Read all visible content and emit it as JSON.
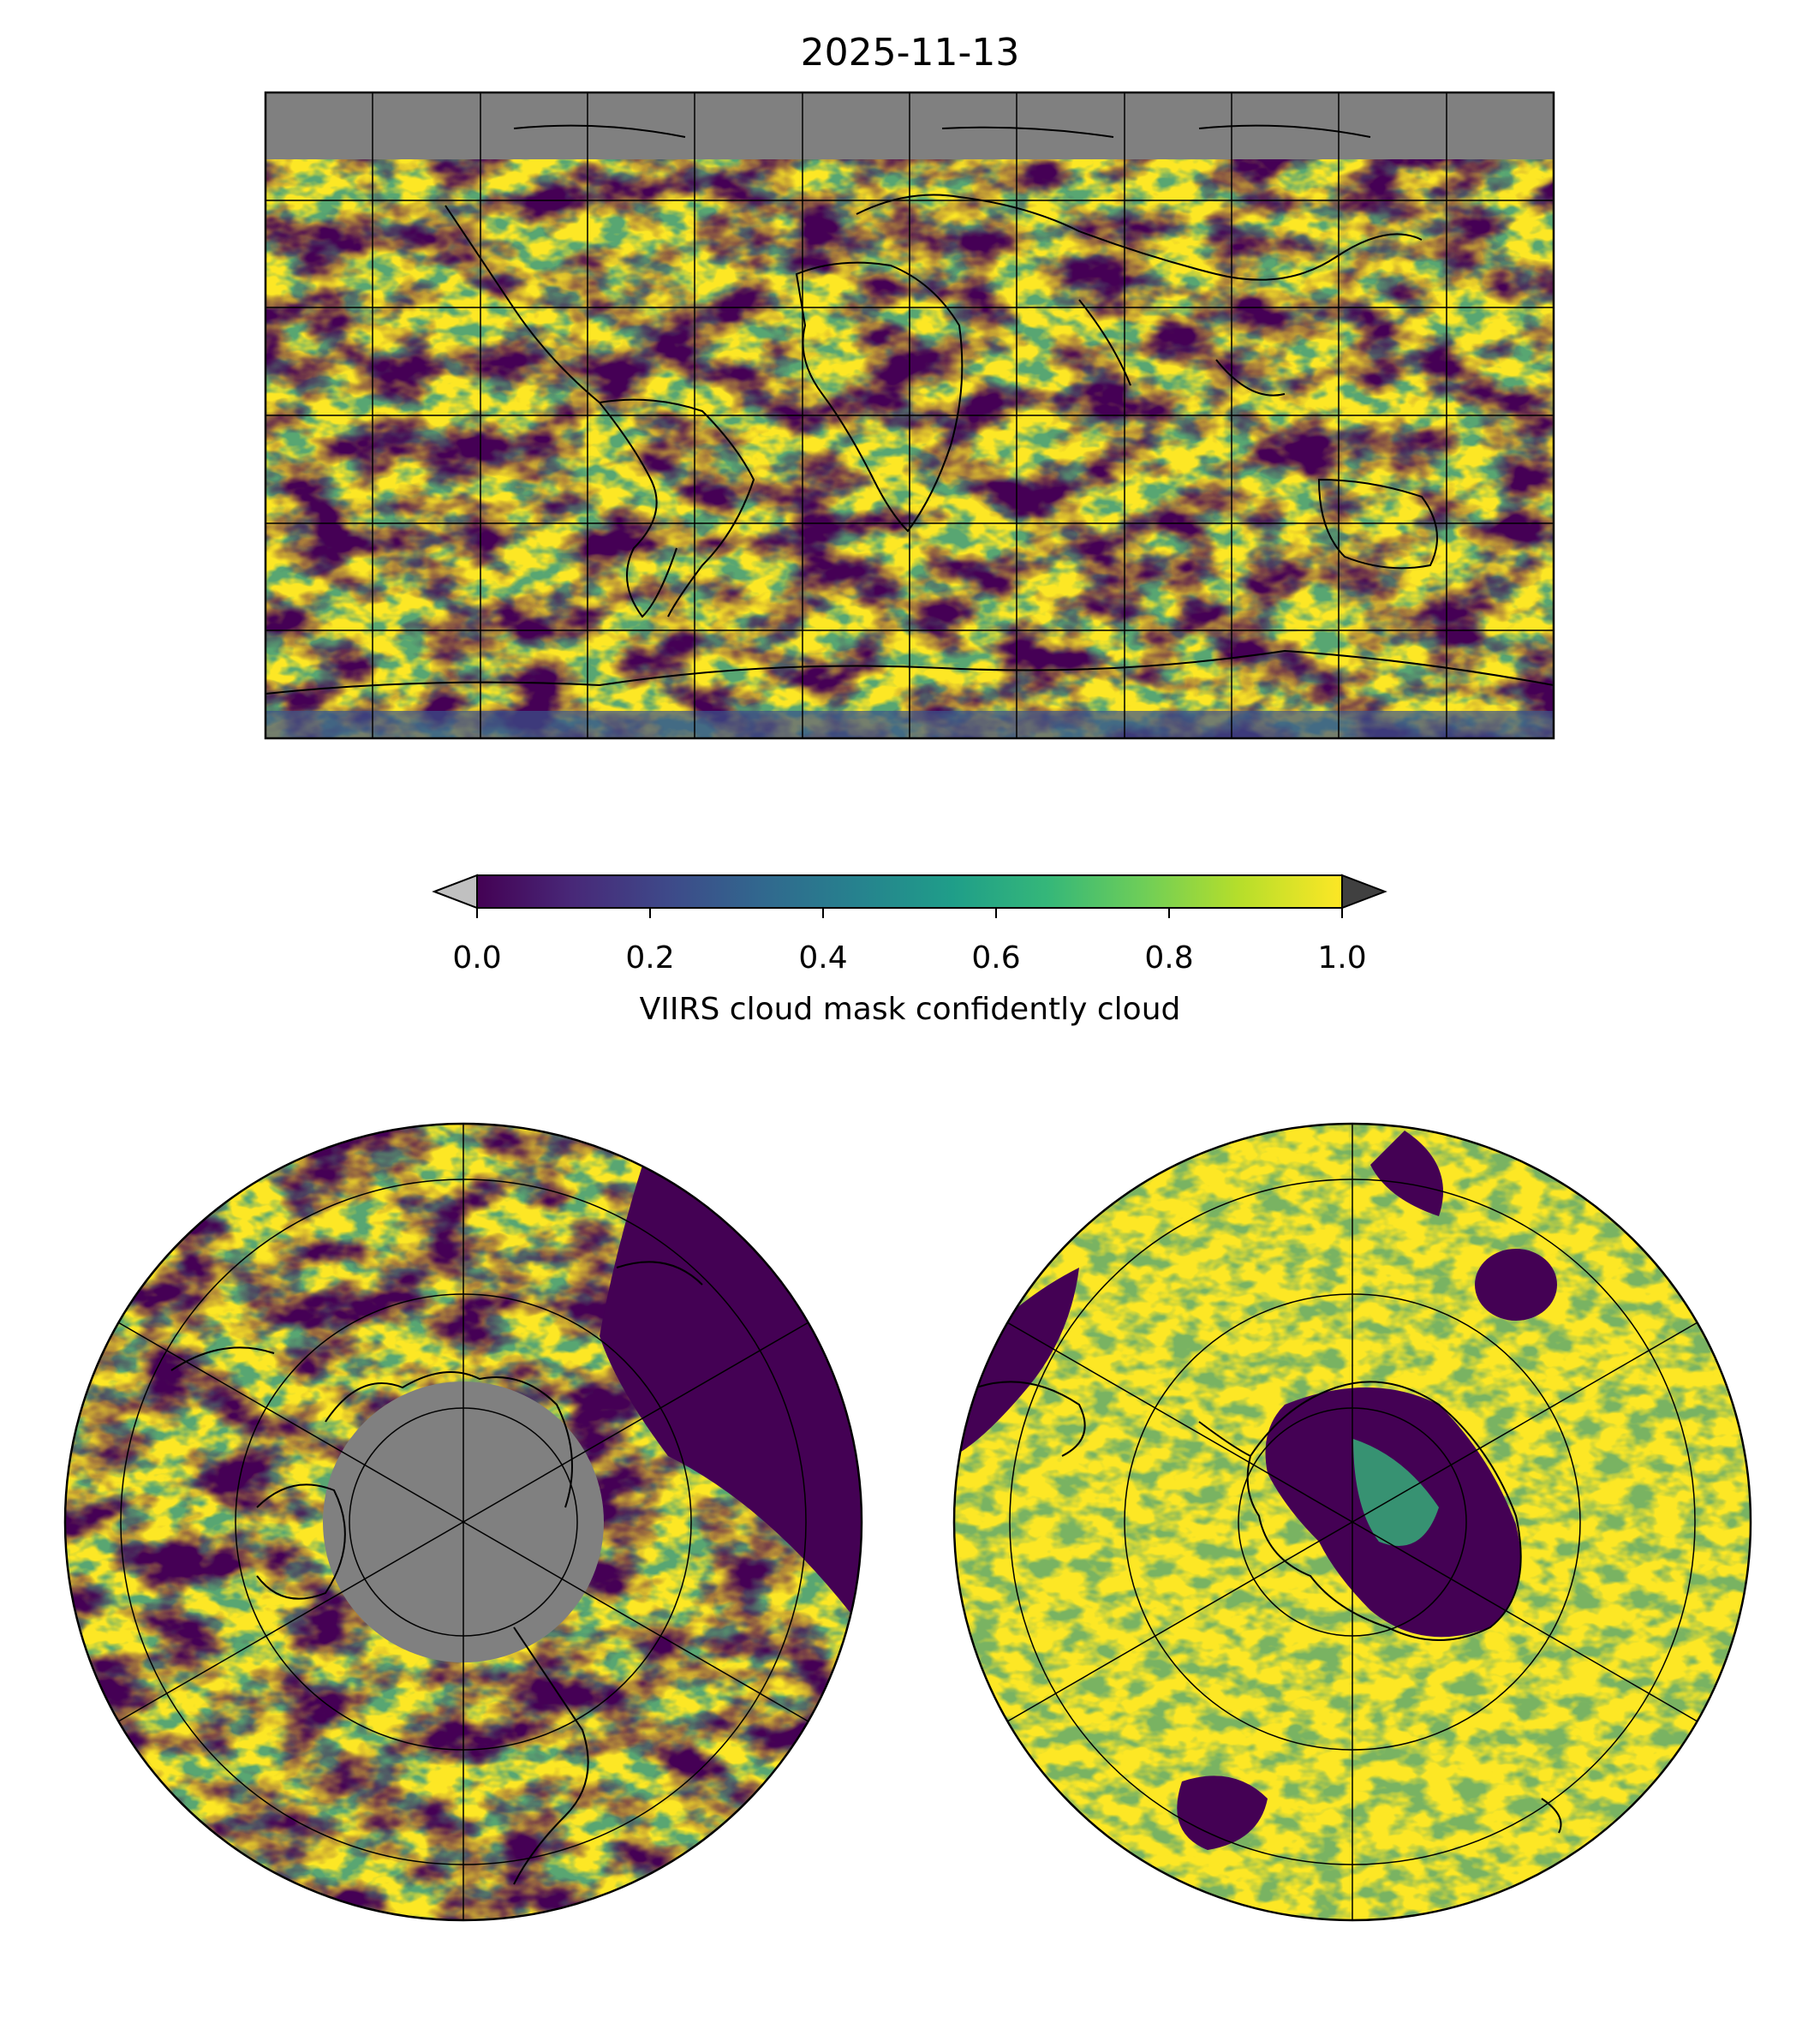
{
  "figure": {
    "title": "2025-11-13"
  },
  "colorbar": {
    "label": "VIIRS cloud mask confidently cloud",
    "ticks": [
      "0.0",
      "0.2",
      "0.4",
      "0.6",
      "0.8",
      "1.0"
    ],
    "range": [
      0.0,
      1.0
    ],
    "colormap": "viridis",
    "extend": "both",
    "under_color": "#c0c0c0",
    "over_color": "#404040",
    "stops": [
      "#440154",
      "#482878",
      "#3e4989",
      "#31688e",
      "#26828e",
      "#1f9e89",
      "#35b779",
      "#6ece58",
      "#b5de2b",
      "#fde725"
    ]
  },
  "maps": [
    {
      "name": "global",
      "projection": "plate-carree",
      "no_data_color": "#808080"
    },
    {
      "name": "north-pole",
      "projection": "north-polar-stereographic",
      "no_data_color": "#808080"
    },
    {
      "name": "south-pole",
      "projection": "south-polar-stereographic"
    }
  ]
}
